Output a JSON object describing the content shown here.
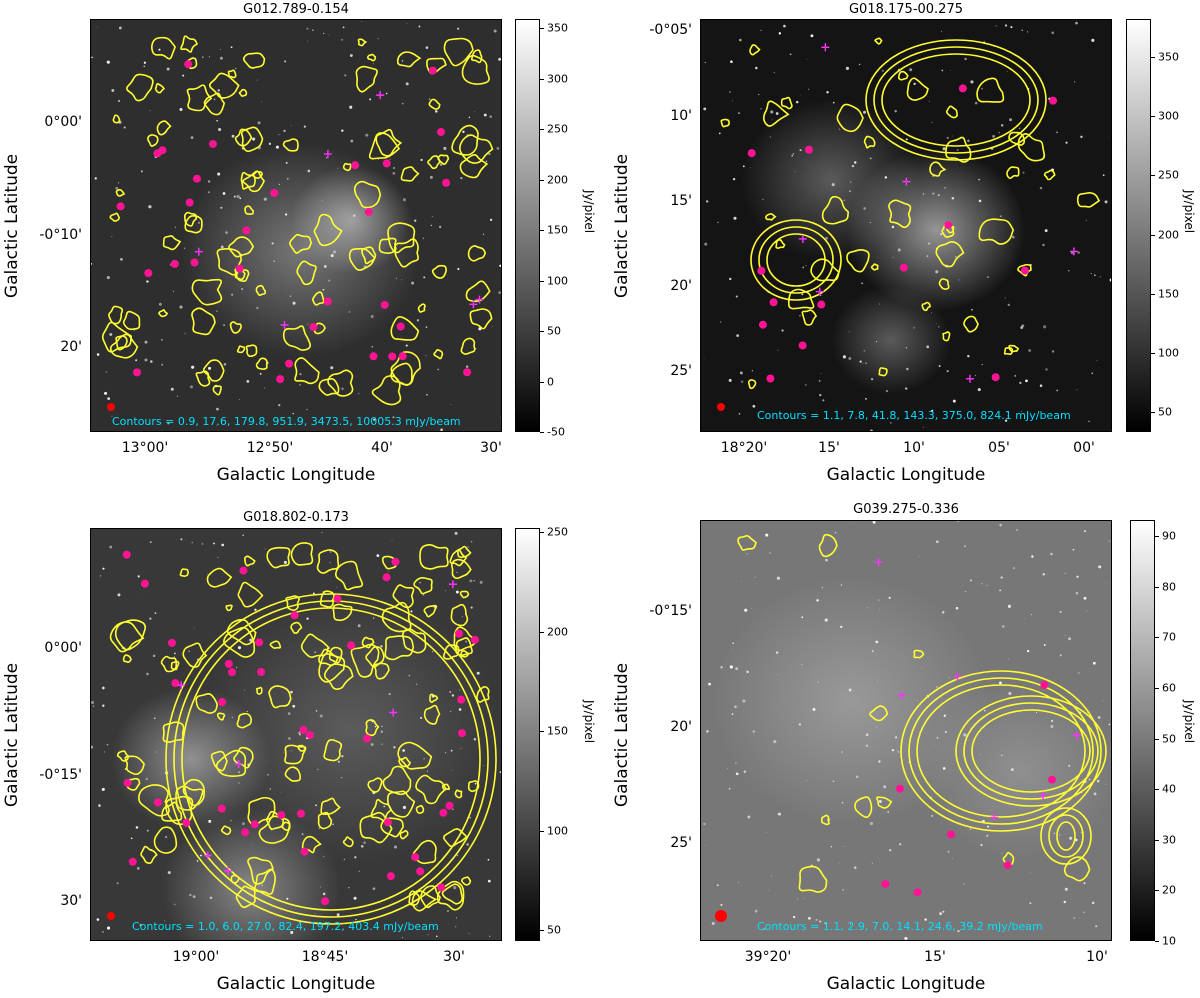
{
  "axis_labels": {
    "x": "Galactic Longitude",
    "y": "Galactic Latitude",
    "colorbar": "Jy/pixel"
  },
  "panels": [
    {
      "title": "G012.789-0.154",
      "y_ticks": [
        "0°00'",
        "-0°10'",
        "20'"
      ],
      "x_ticks": [
        "13°00'",
        "12°50'",
        "40'",
        "30'"
      ],
      "colorbar_ticks": [
        "350",
        "300",
        "250",
        "200",
        "150",
        "100",
        "50",
        "0",
        "-50"
      ],
      "contours": "Contours = 0.9, 17.6, 179.8, 951.9, 3473.5, 10005.3 mJy/beam"
    },
    {
      "title": "G018.175-00.275",
      "y_ticks": [
        "-0°05'",
        "10'",
        "15'",
        "20'",
        "25'"
      ],
      "x_ticks": [
        "18°20'",
        "15'",
        "10'",
        "05'",
        "00'"
      ],
      "colorbar_ticks": [
        "350",
        "300",
        "250",
        "200",
        "150",
        "100",
        "50"
      ],
      "contours": "Contours = 1.1, 7.8, 41.8, 143.3, 375.0, 824.1 mJy/beam"
    },
    {
      "title": "G018.802-0.173",
      "y_ticks": [
        "0°00'",
        "-0°15'",
        "30'"
      ],
      "x_ticks": [
        "19°00'",
        "18°45'",
        "30'"
      ],
      "colorbar_ticks": [
        "250",
        "200",
        "150",
        "100",
        "50"
      ],
      "contours": "Contours = 1.0, 6.0, 27.0, 82.4, 197.2, 403.4 mJy/beam"
    },
    {
      "title": "G039.275-0.336",
      "y_ticks": [
        "-0°15'",
        "20'",
        "25'"
      ],
      "x_ticks": [
        "39°20'",
        "15'",
        "10'"
      ],
      "colorbar_ticks": [
        "90",
        "80",
        "70",
        "60",
        "50",
        "40",
        "30",
        "20",
        "10"
      ],
      "contours": "Contours = 1.1, 2.9, 7.0, 14.1, 24.6, 39.2 mJy/beam"
    }
  ],
  "colors": {
    "contour": "#ffff33",
    "marker": "#ff1493",
    "cross": "#ff33ff",
    "contours_text": "#00e0ff",
    "beam": "#ff0000"
  }
}
